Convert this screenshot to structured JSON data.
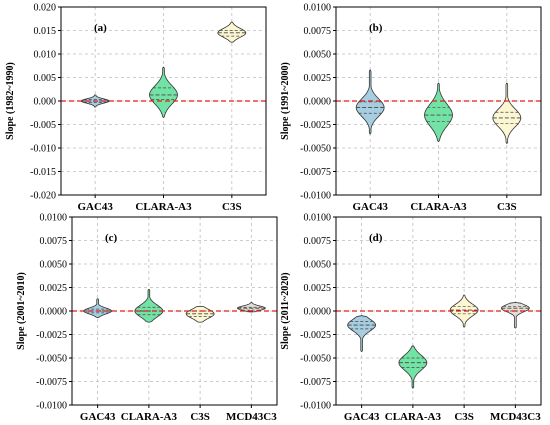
{
  "colors": {
    "GAC43": "#a6cee0",
    "CLARA-A3": "#73e3a5",
    "C3S": "#fdf6d3",
    "MCD43C3": "#e2ddd5",
    "zero_line": "#e41a1c"
  },
  "chart_data": [
    {
      "type": "violin",
      "panel_label": "(a)",
      "ylabel": "Slope (1982~1990)",
      "ylim": [
        -0.02,
        0.02
      ],
      "yticks": [
        "-0.020",
        "-0.015",
        "-0.010",
        "-0.005",
        "0.000",
        "0.005",
        "0.010",
        "0.015",
        "0.020"
      ],
      "grid": true,
      "reference_line": 0,
      "categories": [
        "GAC43",
        "CLARA-A3",
        "C3S"
      ],
      "series": [
        {
          "category": "GAC43",
          "min": -0.0013,
          "q1": -0.0003,
          "median": 0.0,
          "q3": 0.0003,
          "max": 0.0013
        },
        {
          "category": "CLARA-A3",
          "min": -0.0035,
          "q1": 0.0003,
          "median": 0.0013,
          "q3": 0.0028,
          "max": 0.0072
        },
        {
          "category": "C3S",
          "min": 0.0125,
          "q1": 0.0138,
          "median": 0.0145,
          "q3": 0.015,
          "max": 0.0168
        }
      ]
    },
    {
      "type": "violin",
      "panel_label": "(b)",
      "ylabel": "Slope (1991~2000)",
      "ylim": [
        -0.01,
        0.01
      ],
      "yticks": [
        "-0.0100",
        "-0.0075",
        "-0.0050",
        "-0.0025",
        "0.0000",
        "0.0025",
        "0.0050",
        "0.0075",
        "0.0100"
      ],
      "grid": true,
      "reference_line": 0,
      "categories": [
        "GAC43",
        "CLARA-A3",
        "C3S"
      ],
      "series": [
        {
          "category": "GAC43",
          "min": -0.0035,
          "q1": -0.0013,
          "median": -0.0007,
          "q3": -0.0001,
          "max": 0.0033
        },
        {
          "category": "CLARA-A3",
          "min": -0.0043,
          "q1": -0.0022,
          "median": -0.0015,
          "q3": -0.0007,
          "max": 0.0019
        },
        {
          "category": "C3S",
          "min": -0.0045,
          "q1": -0.0024,
          "median": -0.0018,
          "q3": -0.0012,
          "max": 0.0019
        }
      ]
    },
    {
      "type": "violin",
      "panel_label": "(c)",
      "ylabel": "Slope (2001~2010)",
      "ylim": [
        -0.01,
        0.01
      ],
      "yticks": [
        "-0.0100",
        "-0.0075",
        "-0.0050",
        "-0.0025",
        "0.0000",
        "0.0025",
        "0.0050",
        "0.0075",
        "0.0100"
      ],
      "grid": true,
      "reference_line": 0,
      "categories": [
        "GAC43",
        "CLARA-A3",
        "C3S",
        "MCD43C3"
      ],
      "series": [
        {
          "category": "GAC43",
          "min": -0.0007,
          "q1": -0.0002,
          "median": 0.0,
          "q3": 0.0002,
          "max": 0.0013
        },
        {
          "category": "CLARA-A3",
          "min": -0.0012,
          "q1": -0.0004,
          "median": 0.0,
          "q3": 0.0004,
          "max": 0.0023
        },
        {
          "category": "C3S",
          "min": -0.0012,
          "q1": -0.0006,
          "median": -0.0003,
          "q3": 0.0,
          "max": 0.0005
        },
        {
          "category": "MCD43C3",
          "min": -0.0001,
          "q1": 0.0001,
          "median": 0.0003,
          "q3": 0.0004,
          "max": 0.0009
        }
      ]
    },
    {
      "type": "violin",
      "panel_label": "(d)",
      "ylabel": "Slope (2011~2020)",
      "ylim": [
        -0.01,
        0.01
      ],
      "yticks": [
        "-0.0100",
        "-0.0075",
        "-0.0050",
        "-0.0025",
        "0.0000",
        "0.0025",
        "0.0050",
        "0.0075",
        "0.0100"
      ],
      "grid": true,
      "reference_line": 0,
      "categories": [
        "GAC43",
        "CLARA-A3",
        "C3S",
        "MCD43C3"
      ],
      "series": [
        {
          "category": "GAC43",
          "min": -0.0043,
          "q1": -0.0019,
          "median": -0.0015,
          "q3": -0.0011,
          "max": -0.0005
        },
        {
          "category": "CLARA-A3",
          "min": -0.0082,
          "q1": -0.006,
          "median": -0.0055,
          "q3": -0.005,
          "max": -0.0037
        },
        {
          "category": "C3S",
          "min": -0.0017,
          "q1": -0.0003,
          "median": 0.0001,
          "q3": 0.0005,
          "max": 0.0017
        },
        {
          "category": "MCD43C3",
          "min": -0.0018,
          "q1": 0.0,
          "median": 0.0003,
          "q3": 0.0005,
          "max": 0.0009
        }
      ]
    }
  ]
}
